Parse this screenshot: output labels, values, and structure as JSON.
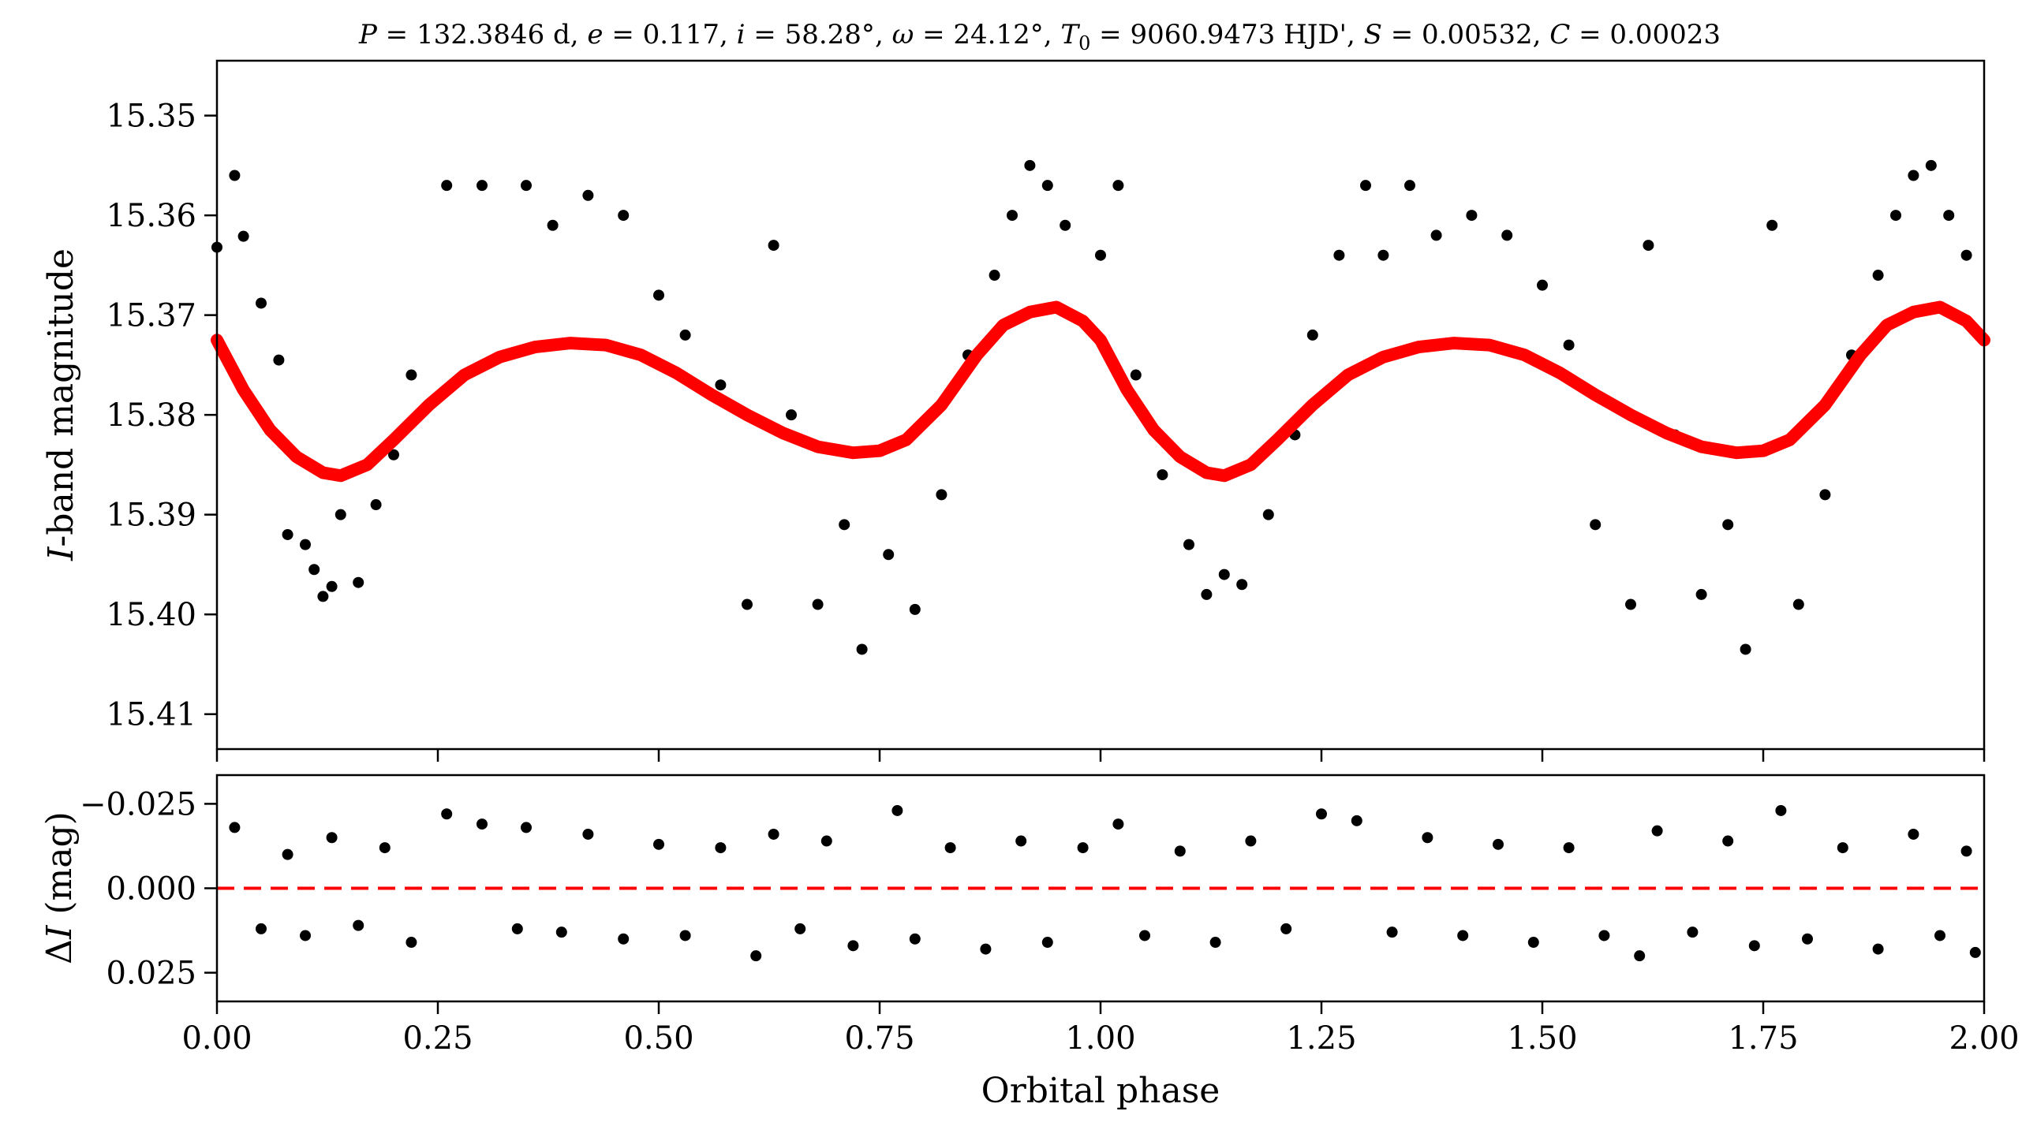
{
  "chart_data": [
    {
      "type": "scatter",
      "panel": "light-curve",
      "title": "P = 132.3846 d, e = 0.117, i = 58.28°, ω = 24.12°, T0 = 9060.9473 HJD', S = 0.00532, C = 0.00023",
      "title_parts": {
        "P": "132.3846 d",
        "e": "0.117",
        "i": "58.28°",
        "omega": "24.12°",
        "T0": "9060.9473 HJD'",
        "S": "0.00532",
        "C": "0.00023"
      },
      "xlabel": "",
      "ylabel": "I-band magnitude",
      "ylabel_italic": "I",
      "ylabel_rest": "-band magnitude",
      "xlim": [
        0.0,
        2.0
      ],
      "ylim": [
        15.4135,
        15.3445
      ],
      "y_inverted": true,
      "yticks": [
        15.35,
        15.36,
        15.37,
        15.38,
        15.39,
        15.4,
        15.41
      ],
      "ytick_labels": [
        "15.35",
        "15.36",
        "15.37",
        "15.38",
        "15.39",
        "15.40",
        "15.41"
      ],
      "model": {
        "color": "#ff0000",
        "points": [
          [
            0.0,
            15.3725
          ],
          [
            0.03,
            15.3775
          ],
          [
            0.06,
            15.3815
          ],
          [
            0.09,
            15.3842
          ],
          [
            0.12,
            15.3858
          ],
          [
            0.14,
            15.3861
          ],
          [
            0.17,
            15.385
          ],
          [
            0.2,
            15.3825
          ],
          [
            0.24,
            15.379
          ],
          [
            0.28,
            15.376
          ],
          [
            0.32,
            15.3742
          ],
          [
            0.36,
            15.3732
          ],
          [
            0.4,
            15.3728
          ],
          [
            0.44,
            15.373
          ],
          [
            0.48,
            15.374
          ],
          [
            0.52,
            15.3758
          ],
          [
            0.56,
            15.378
          ],
          [
            0.6,
            15.38
          ],
          [
            0.64,
            15.3818
          ],
          [
            0.68,
            15.3832
          ],
          [
            0.72,
            15.3838
          ],
          [
            0.75,
            15.3836
          ],
          [
            0.78,
            15.3825
          ],
          [
            0.82,
            15.379
          ],
          [
            0.86,
            15.374
          ],
          [
            0.89,
            15.371
          ],
          [
            0.92,
            15.3697
          ],
          [
            0.95,
            15.3692
          ],
          [
            0.98,
            15.3706
          ],
          [
            1.0,
            15.3725
          ],
          [
            1.03,
            15.3775
          ],
          [
            1.06,
            15.3815
          ],
          [
            1.09,
            15.3842
          ],
          [
            1.12,
            15.3858
          ],
          [
            1.14,
            15.3861
          ],
          [
            1.17,
            15.385
          ],
          [
            1.2,
            15.3825
          ],
          [
            1.24,
            15.379
          ],
          [
            1.28,
            15.376
          ],
          [
            1.32,
            15.3742
          ],
          [
            1.36,
            15.3732
          ],
          [
            1.4,
            15.3728
          ],
          [
            1.44,
            15.373
          ],
          [
            1.48,
            15.374
          ],
          [
            1.52,
            15.3758
          ],
          [
            1.56,
            15.378
          ],
          [
            1.6,
            15.38
          ],
          [
            1.64,
            15.3818
          ],
          [
            1.68,
            15.3832
          ],
          [
            1.72,
            15.3838
          ],
          [
            1.75,
            15.3836
          ],
          [
            1.78,
            15.3825
          ],
          [
            1.82,
            15.379
          ],
          [
            1.86,
            15.374
          ],
          [
            1.89,
            15.371
          ],
          [
            1.92,
            15.3697
          ],
          [
            1.95,
            15.3692
          ],
          [
            1.98,
            15.3706
          ],
          [
            2.0,
            15.3725
          ]
        ]
      },
      "points_color": "#000000",
      "points": [
        [
          0.0,
          15.3632
        ],
        [
          0.02,
          15.356
        ],
        [
          0.03,
          15.3621
        ],
        [
          0.05,
          15.3688
        ],
        [
          0.07,
          15.3745
        ],
        [
          0.08,
          15.392
        ],
        [
          0.1,
          15.393
        ],
        [
          0.11,
          15.3955
        ],
        [
          0.12,
          15.3982
        ],
        [
          0.13,
          15.3972
        ],
        [
          0.14,
          15.39
        ],
        [
          0.16,
          15.3968
        ],
        [
          0.18,
          15.389
        ],
        [
          0.2,
          15.384
        ],
        [
          0.22,
          15.376
        ],
        [
          0.26,
          15.357
        ],
        [
          0.3,
          15.357
        ],
        [
          0.35,
          15.357
        ],
        [
          0.38,
          15.361
        ],
        [
          0.42,
          15.358
        ],
        [
          0.46,
          15.36
        ],
        [
          0.5,
          15.368
        ],
        [
          0.53,
          15.372
        ],
        [
          0.57,
          15.377
        ],
        [
          0.6,
          15.399
        ],
        [
          0.63,
          15.363
        ],
        [
          0.65,
          15.38
        ],
        [
          0.68,
          15.399
        ],
        [
          0.71,
          15.391
        ],
        [
          0.73,
          15.4035
        ],
        [
          0.76,
          15.394
        ],
        [
          0.79,
          15.3995
        ],
        [
          0.82,
          15.388
        ],
        [
          0.85,
          15.374
        ],
        [
          0.88,
          15.366
        ],
        [
          0.9,
          15.36
        ],
        [
          0.92,
          15.355
        ],
        [
          0.94,
          15.357
        ],
        [
          0.96,
          15.361
        ],
        [
          1.0,
          15.364
        ],
        [
          1.02,
          15.357
        ],
        [
          1.04,
          15.376
        ],
        [
          1.07,
          15.386
        ],
        [
          1.1,
          15.393
        ],
        [
          1.12,
          15.398
        ],
        [
          1.14,
          15.396
        ],
        [
          1.16,
          15.397
        ],
        [
          1.19,
          15.39
        ],
        [
          1.22,
          15.382
        ],
        [
          1.24,
          15.372
        ],
        [
          1.27,
          15.364
        ],
        [
          1.3,
          15.357
        ],
        [
          1.32,
          15.364
        ],
        [
          1.35,
          15.357
        ],
        [
          1.38,
          15.362
        ],
        [
          1.42,
          15.36
        ],
        [
          1.46,
          15.362
        ],
        [
          1.5,
          15.367
        ],
        [
          1.53,
          15.373
        ],
        [
          1.56,
          15.391
        ],
        [
          1.6,
          15.399
        ],
        [
          1.62,
          15.363
        ],
        [
          1.65,
          15.382
        ],
        [
          1.68,
          15.398
        ],
        [
          1.71,
          15.391
        ],
        [
          1.73,
          15.4035
        ],
        [
          1.76,
          15.361
        ],
        [
          1.79,
          15.399
        ],
        [
          1.82,
          15.388
        ],
        [
          1.85,
          15.374
        ],
        [
          1.88,
          15.366
        ],
        [
          1.9,
          15.36
        ],
        [
          1.92,
          15.356
        ],
        [
          1.94,
          15.355
        ],
        [
          1.96,
          15.36
        ],
        [
          1.98,
          15.364
        ]
      ]
    },
    {
      "type": "scatter",
      "panel": "residuals",
      "title": "",
      "xlabel": "Orbital phase",
      "ylabel": "ΔI (mag)",
      "ylabel_delta": "Δ",
      "ylabel_italic": "I",
      "ylabel_rest": " (mag)",
      "xlim": [
        0.0,
        2.0
      ],
      "ylim": [
        0.0335,
        -0.0335
      ],
      "y_inverted": true,
      "xticks": [
        0.0,
        0.25,
        0.5,
        0.75,
        1.0,
        1.25,
        1.5,
        1.75,
        2.0
      ],
      "xtick_labels": [
        "0.00",
        "0.25",
        "0.50",
        "0.75",
        "1.00",
        "1.25",
        "1.50",
        "1.75",
        "2.00"
      ],
      "yticks": [
        -0.025,
        0.0,
        0.025
      ],
      "ytick_labels": [
        "−0.025",
        "0.000",
        "0.025"
      ],
      "zero_line": {
        "y": 0.0,
        "color": "#ff0000",
        "style": "dashed"
      },
      "points_color": "#000000",
      "points": [
        [
          0.02,
          -0.018
        ],
        [
          0.05,
          0.012
        ],
        [
          0.08,
          -0.01
        ],
        [
          0.1,
          0.014
        ],
        [
          0.13,
          -0.015
        ],
        [
          0.16,
          0.011
        ],
        [
          0.19,
          -0.012
        ],
        [
          0.22,
          0.016
        ],
        [
          0.26,
          -0.022
        ],
        [
          0.3,
          -0.019
        ],
        [
          0.34,
          0.012
        ],
        [
          0.35,
          -0.018
        ],
        [
          0.39,
          0.013
        ],
        [
          0.42,
          -0.016
        ],
        [
          0.46,
          0.015
        ],
        [
          0.5,
          -0.013
        ],
        [
          0.53,
          0.014
        ],
        [
          0.57,
          -0.012
        ],
        [
          0.61,
          0.02
        ],
        [
          0.63,
          -0.016
        ],
        [
          0.66,
          0.012
        ],
        [
          0.69,
          -0.014
        ],
        [
          0.72,
          0.017
        ],
        [
          0.77,
          -0.023
        ],
        [
          0.79,
          0.015
        ],
        [
          0.83,
          -0.012
        ],
        [
          0.87,
          0.018
        ],
        [
          0.91,
          -0.014
        ],
        [
          0.94,
          0.016
        ],
        [
          0.98,
          -0.012
        ],
        [
          1.02,
          -0.019
        ],
        [
          1.05,
          0.014
        ],
        [
          1.09,
          -0.011
        ],
        [
          1.13,
          0.016
        ],
        [
          1.17,
          -0.014
        ],
        [
          1.21,
          0.012
        ],
        [
          1.25,
          -0.022
        ],
        [
          1.29,
          -0.02
        ],
        [
          1.33,
          0.013
        ],
        [
          1.37,
          -0.015
        ],
        [
          1.41,
          0.014
        ],
        [
          1.45,
          -0.013
        ],
        [
          1.49,
          0.016
        ],
        [
          1.53,
          -0.012
        ],
        [
          1.57,
          0.014
        ],
        [
          1.61,
          0.02
        ],
        [
          1.63,
          -0.017
        ],
        [
          1.67,
          0.013
        ],
        [
          1.71,
          -0.014
        ],
        [
          1.74,
          0.017
        ],
        [
          1.77,
          -0.023
        ],
        [
          1.8,
          0.015
        ],
        [
          1.84,
          -0.012
        ],
        [
          1.88,
          0.018
        ],
        [
          1.92,
          -0.016
        ],
        [
          1.95,
          0.014
        ],
        [
          1.98,
          -0.011
        ],
        [
          1.99,
          0.019
        ]
      ]
    }
  ]
}
